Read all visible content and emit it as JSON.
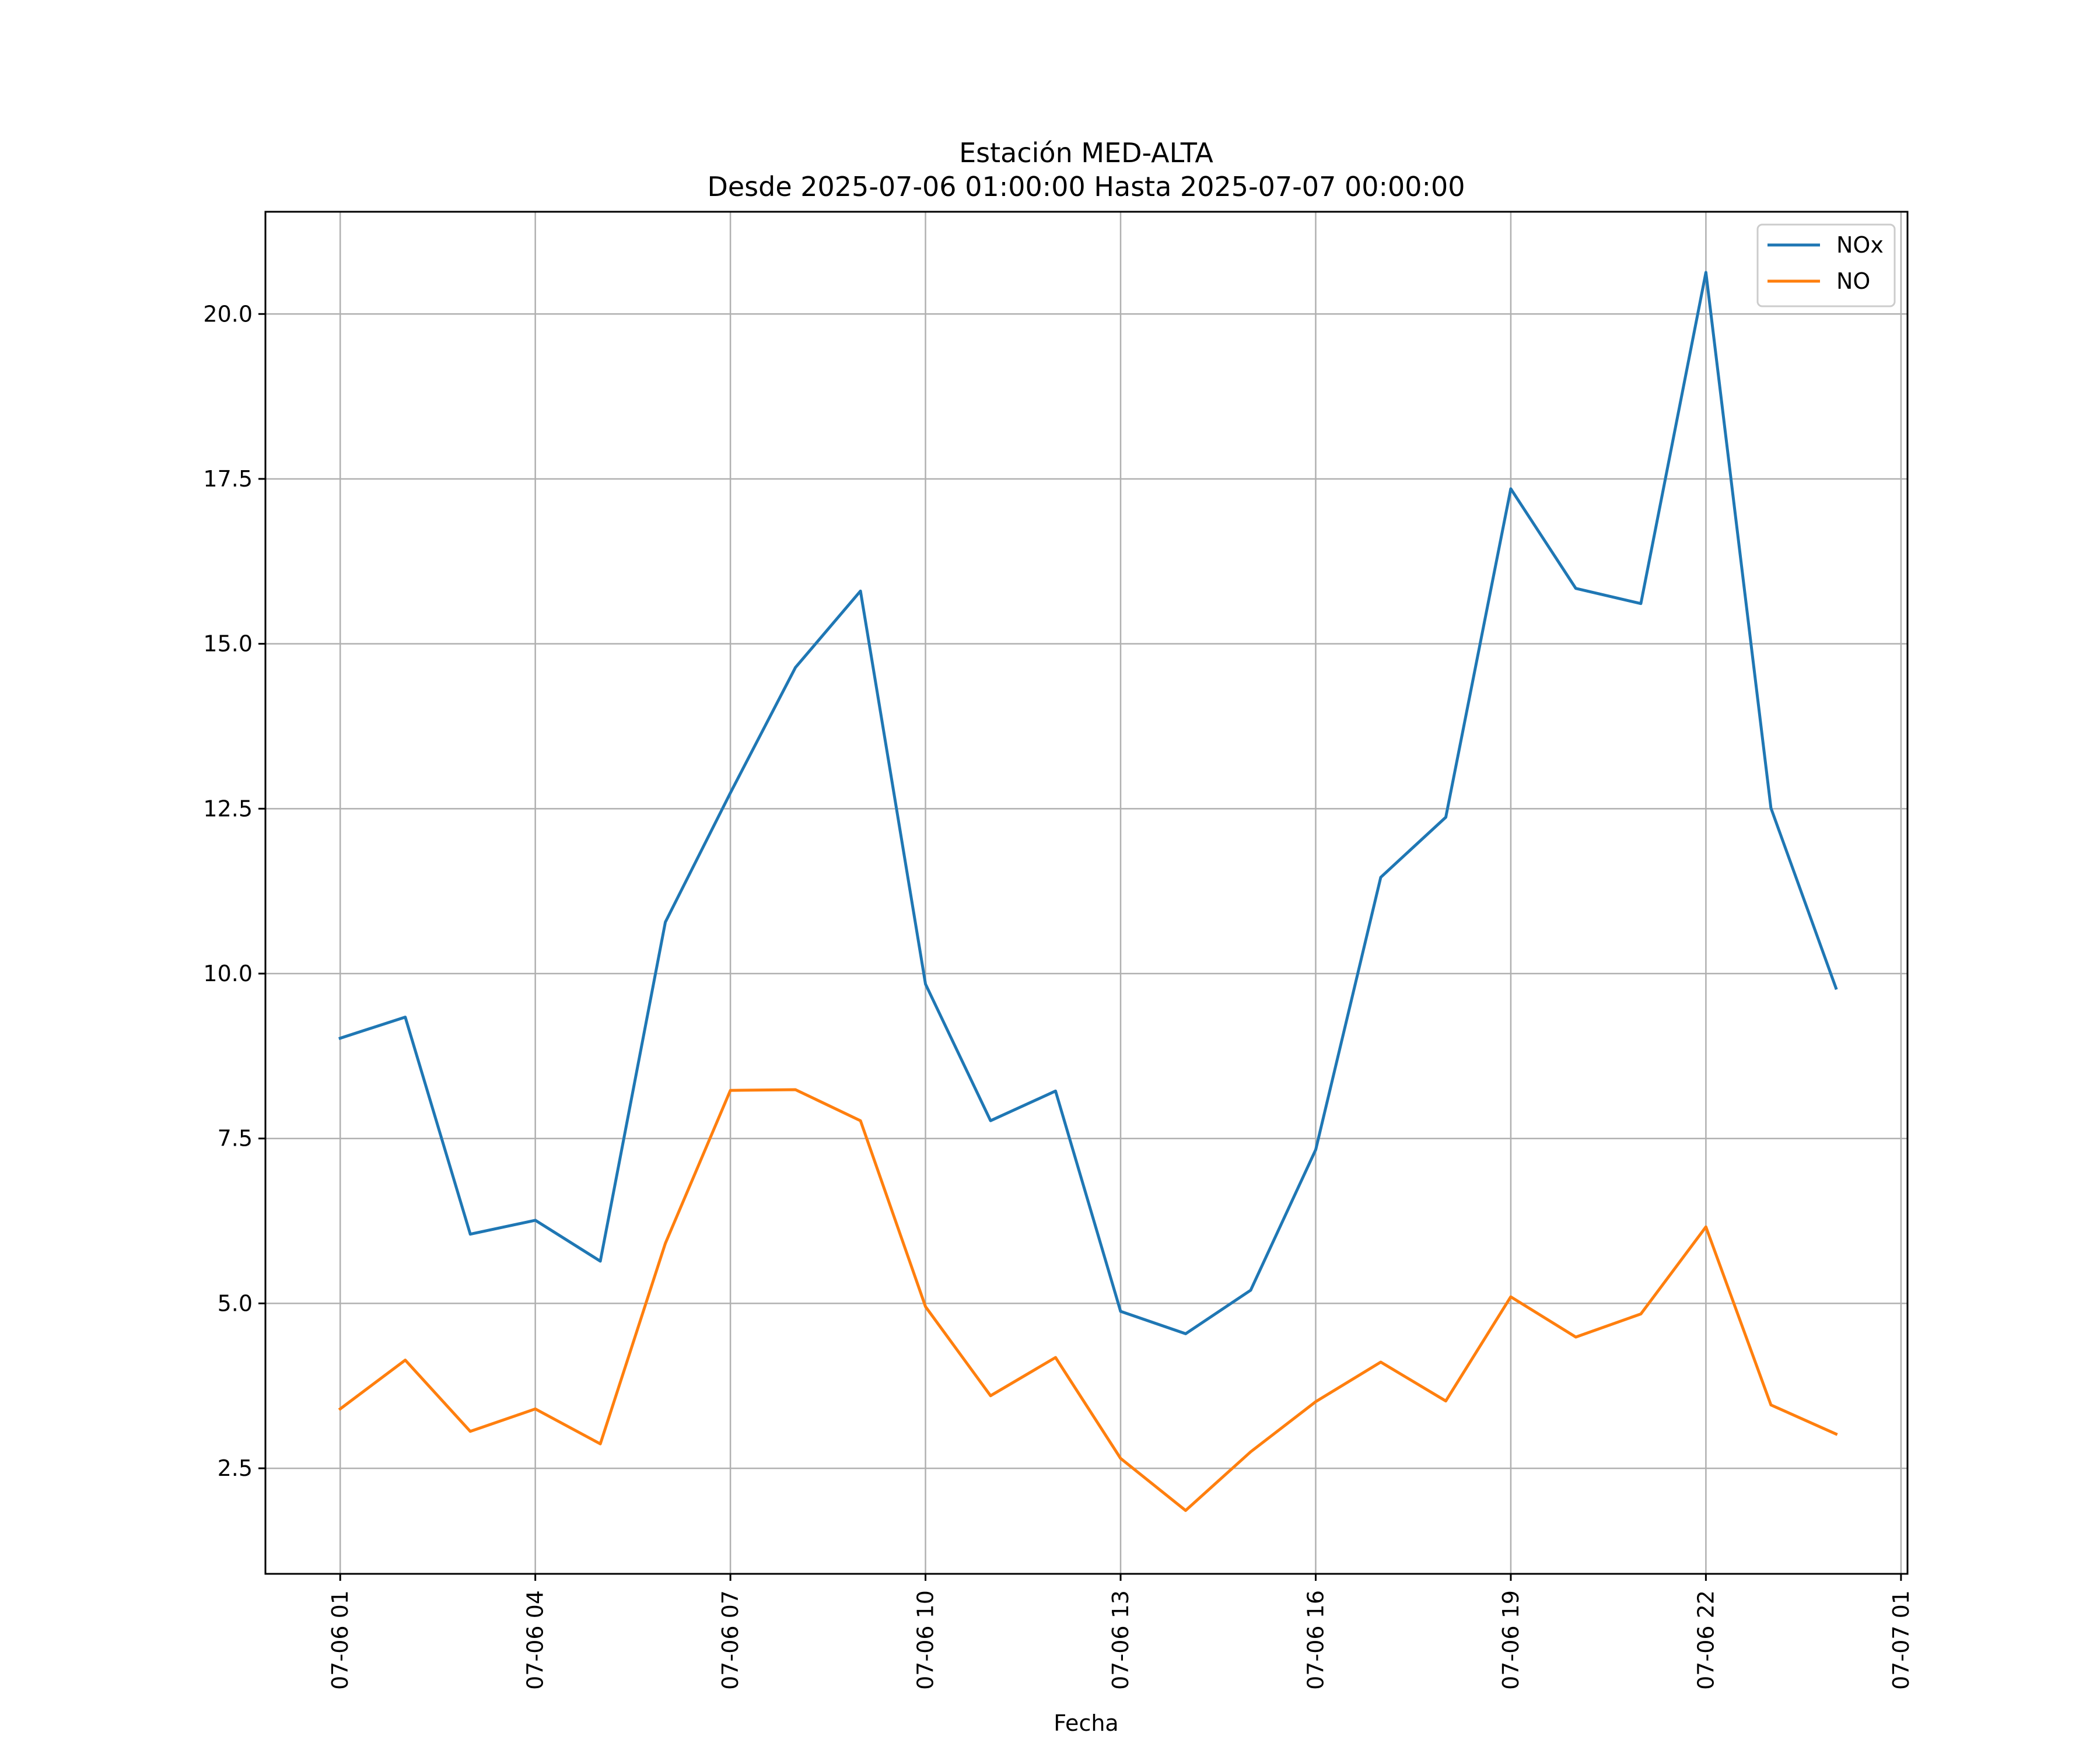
{
  "chart_data": {
    "type": "line",
    "title": "Estación MED-ALTA",
    "subtitle": "Desde 2025-07-06 01:00:00 Hasta 2025-07-07 00:00:00",
    "xlabel": "Fecha",
    "ylabel": "",
    "x": [
      "07-06 01",
      "07-06 02",
      "07-06 03",
      "07-06 04",
      "07-06 05",
      "07-06 06",
      "07-06 07",
      "07-06 08",
      "07-06 09",
      "07-06 10",
      "07-06 11",
      "07-06 12",
      "07-06 13",
      "07-06 14",
      "07-06 15",
      "07-06 16",
      "07-06 17",
      "07-06 18",
      "07-06 19",
      "07-06 20",
      "07-06 21",
      "07-06 22",
      "07-06 23",
      "07-07 00"
    ],
    "x_hours": [
      1,
      2,
      3,
      4,
      5,
      6,
      7,
      8,
      9,
      10,
      11,
      12,
      13,
      14,
      15,
      16,
      17,
      18,
      19,
      20,
      21,
      22,
      23,
      24
    ],
    "xlim_hours": [
      -0.15,
      25.1
    ],
    "xticks_hours": [
      1,
      4,
      7,
      10,
      13,
      16,
      19,
      22,
      25
    ],
    "xtick_labels": [
      "07-06 01",
      "07-06 04",
      "07-06 07",
      "07-06 10",
      "07-06 13",
      "07-06 16",
      "07-06 19",
      "07-06 22",
      "07-07 01"
    ],
    "ylim": [
      0.9,
      21.55
    ],
    "yticks": [
      2.5,
      5.0,
      7.5,
      10.0,
      12.5,
      15.0,
      17.5,
      20.0
    ],
    "ytick_labels": [
      "2.5",
      "5.0",
      "7.5",
      "10.0",
      "12.5",
      "15.0",
      "17.5",
      "20.0"
    ],
    "grid": true,
    "legend_position": "top-right",
    "series": [
      {
        "name": "NOx",
        "color": "#1f77b4",
        "values": [
          9.02,
          9.34,
          6.05,
          6.26,
          5.64,
          10.78,
          12.74,
          14.64,
          15.8,
          9.84,
          7.77,
          8.22,
          4.88,
          4.54,
          5.2,
          7.33,
          11.46,
          12.37,
          17.35,
          15.84,
          15.61,
          20.63,
          12.51,
          9.78
        ]
      },
      {
        "name": "NO",
        "color": "#ff7f0e",
        "values": [
          3.4,
          4.14,
          3.06,
          3.4,
          2.87,
          5.91,
          8.23,
          8.24,
          7.77,
          4.95,
          3.6,
          4.18,
          2.65,
          1.86,
          2.75,
          3.51,
          4.11,
          3.52,
          5.1,
          4.49,
          4.84,
          6.16,
          3.46,
          3.02
        ]
      }
    ]
  }
}
